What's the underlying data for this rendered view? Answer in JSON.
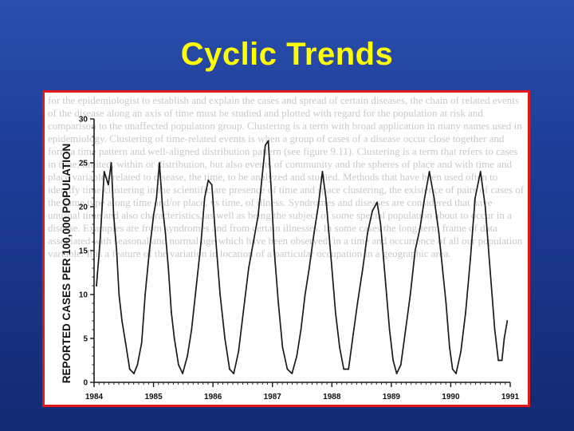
{
  "slide": {
    "title": "Cyclic Trends",
    "colors": {
      "title": "#ffff00",
      "frame": "#e01818",
      "background": "#1f3d98",
      "line": "#1a1a1a"
    }
  },
  "background_text": "for the epidemiologist to establish and explain the cases and spread of certain diseases, the chain of related events of the disease along an axis of time must be studied and plotted with regard for the population at risk and comparison to the unaffected population group. Clustering is a term with broad application in many names used in epidemiology. Clustering of time-related events is when a group of cases of a disease occur close together and form a time pattern and well-aligned distribution pattern (see figure 9.11). Clustering is a term that refers to cases in time, limited, within or distribution, but also events of community and the spheres of place and with time and place variables related to disease, the time, to be analyzed and studied. Methods that have been used often to identify time clustering in the scientific are presence of time and space clustering, the existence of pairs of cases of the same type along time and/or place, vs time, of illness. Syndromes and diseases are considered that have unusual time and also characteristics, as well as being the subject of some special population about to occur in a disease. Examples are from syndromes and from certain illnesses. In some cases the long-term frame of data associated with seasonal and normal age which have been observed, in a time and occurrence of all our population variable. It is a feature of the variation in location of a particular occupation in a geographic area.",
  "chart_data": {
    "type": "line",
    "title": "",
    "xlabel": "",
    "ylabel": "REPORTED CASES PER 100,000 POPULATION",
    "ylim": [
      0,
      30
    ],
    "xlim": [
      1984,
      1991
    ],
    "yticks": [
      0,
      5,
      10,
      15,
      20,
      25,
      30
    ],
    "xticks": [
      "1984",
      "1985",
      "1986",
      "1987",
      "1988",
      "1989",
      "1990",
      "1991"
    ],
    "grid": false,
    "legend": "none",
    "series": [
      {
        "x": [
          1984.04,
          1984.1,
          1984.17,
          1984.24,
          1984.29,
          1984.33,
          1984.38,
          1984.42,
          1984.47,
          1984.53,
          1984.6,
          1984.67,
          1984.73,
          1984.8,
          1984.86,
          1984.93,
          1985.0,
          1985.05,
          1985.1,
          1985.15,
          1985.2,
          1985.25,
          1985.3,
          1985.35,
          1985.42,
          1985.49,
          1985.57,
          1985.64,
          1985.72,
          1985.8,
          1985.86,
          1985.92,
          1985.98,
          1986.05,
          1986.12,
          1986.2,
          1986.28,
          1986.35,
          1986.43,
          1986.51,
          1986.6,
          1986.68,
          1986.76,
          1986.82,
          1986.88,
          1986.93,
          1986.98,
          1987.03,
          1987.1,
          1987.17,
          1987.25,
          1987.33,
          1987.41,
          1987.48,
          1987.55,
          1987.62,
          1987.7,
          1987.77,
          1987.84,
          1987.9,
          1987.95,
          1988.0,
          1988.06,
          1988.13,
          1988.2,
          1988.28,
          1988.36,
          1988.43,
          1988.52,
          1988.6,
          1988.68,
          1988.76,
          1988.82,
          1988.87,
          1988.92,
          1988.97,
          1989.03,
          1989.09,
          1989.16,
          1989.24,
          1989.32,
          1989.4,
          1989.48,
          1989.56,
          1989.64,
          1989.72,
          1989.8,
          1989.86,
          1989.92,
          1989.98,
          1990.03,
          1990.09,
          1990.17,
          1990.25,
          1990.33,
          1990.41,
          1990.5,
          1990.58,
          1990.66,
          1990.74,
          1990.8,
          1990.86,
          1990.9,
          1990.95
        ],
        "y": [
          11,
          16,
          24,
          22.5,
          25,
          19,
          15,
          10,
          7,
          4.5,
          1.5,
          1,
          2,
          4.5,
          10,
          15,
          19,
          21,
          25,
          20,
          17,
          13,
          8,
          5,
          2,
          1,
          3,
          6,
          11,
          16,
          21,
          23,
          22.5,
          16,
          10,
          5,
          1.5,
          1,
          3.5,
          8,
          13,
          16,
          19,
          23,
          27,
          27.5,
          22,
          15,
          9,
          4,
          1.5,
          1,
          3,
          6,
          10,
          13,
          17,
          20,
          24,
          21,
          17,
          13,
          8,
          4,
          1.5,
          1.5,
          5.5,
          9,
          13,
          17,
          19.5,
          20.5,
          18,
          14,
          10,
          6,
          2.5,
          1,
          2,
          6,
          10,
          15,
          17.5,
          21,
          24,
          21,
          17,
          13,
          9,
          4,
          1.5,
          1,
          3.5,
          8,
          14,
          21,
          24,
          20,
          13,
          6,
          2.5,
          2.5,
          5,
          7
        ]
      }
    ]
  }
}
